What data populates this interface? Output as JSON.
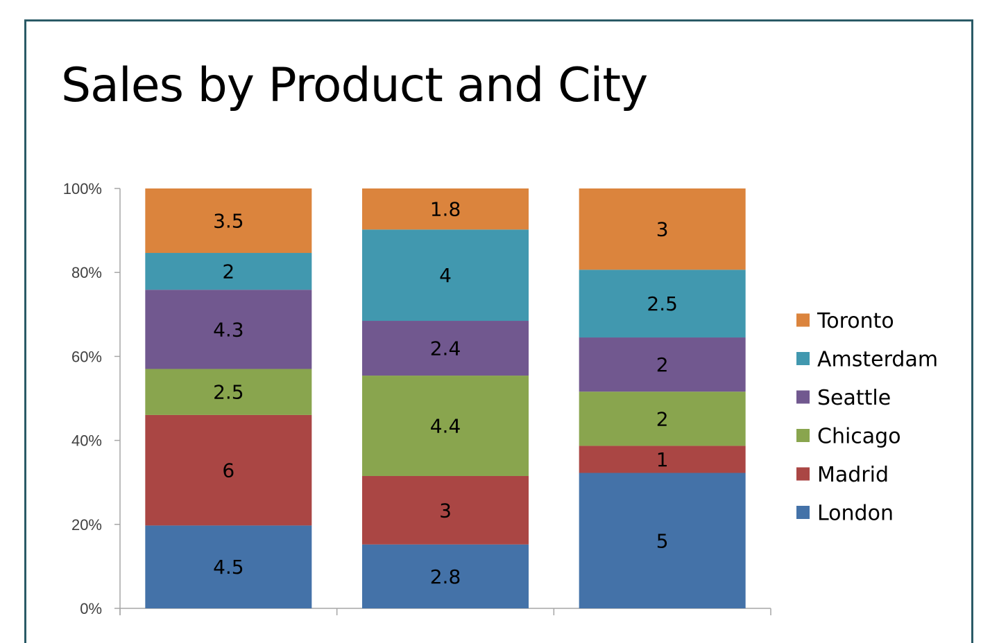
{
  "chart_data": {
    "type": "bar",
    "stacked": "percent",
    "title": "Sales by Product and City",
    "xlabel": "",
    "ylabel": "",
    "ylim": [
      0,
      100
    ],
    "y_ticks": [
      "0%",
      "20%",
      "40%",
      "60%",
      "80%",
      "100%"
    ],
    "categories": [
      "",
      "",
      ""
    ],
    "grid": false,
    "legend_position": "right",
    "series": [
      {
        "name": "London",
        "color": "#4472a8",
        "values": [
          4.5,
          2.8,
          5
        ]
      },
      {
        "name": "Madrid",
        "color": "#aa4644",
        "values": [
          6,
          3,
          1
        ]
      },
      {
        "name": "Chicago",
        "color": "#89a54e",
        "values": [
          2.5,
          4.4,
          2
        ]
      },
      {
        "name": "Seattle",
        "color": "#71588f",
        "values": [
          4.3,
          2.4,
          2
        ]
      },
      {
        "name": "Amsterdam",
        "color": "#4198af",
        "values": [
          2,
          4,
          2.5
        ]
      },
      {
        "name": "Toronto",
        "color": "#db843d",
        "values": [
          3.5,
          1.8,
          3
        ]
      }
    ],
    "value_labels": [
      [
        "4.5",
        "2.8",
        "5"
      ],
      [
        "6",
        "3",
        "1"
      ],
      [
        "2.5",
        "4.4",
        "2"
      ],
      [
        "4.3",
        "2.4",
        "2"
      ],
      [
        "2",
        "4",
        "2.5"
      ],
      [
        "3.5",
        "1.8",
        "3"
      ]
    ]
  },
  "colors": {
    "frame_border": "#2a5a66",
    "axis": "#a6a6a6"
  }
}
